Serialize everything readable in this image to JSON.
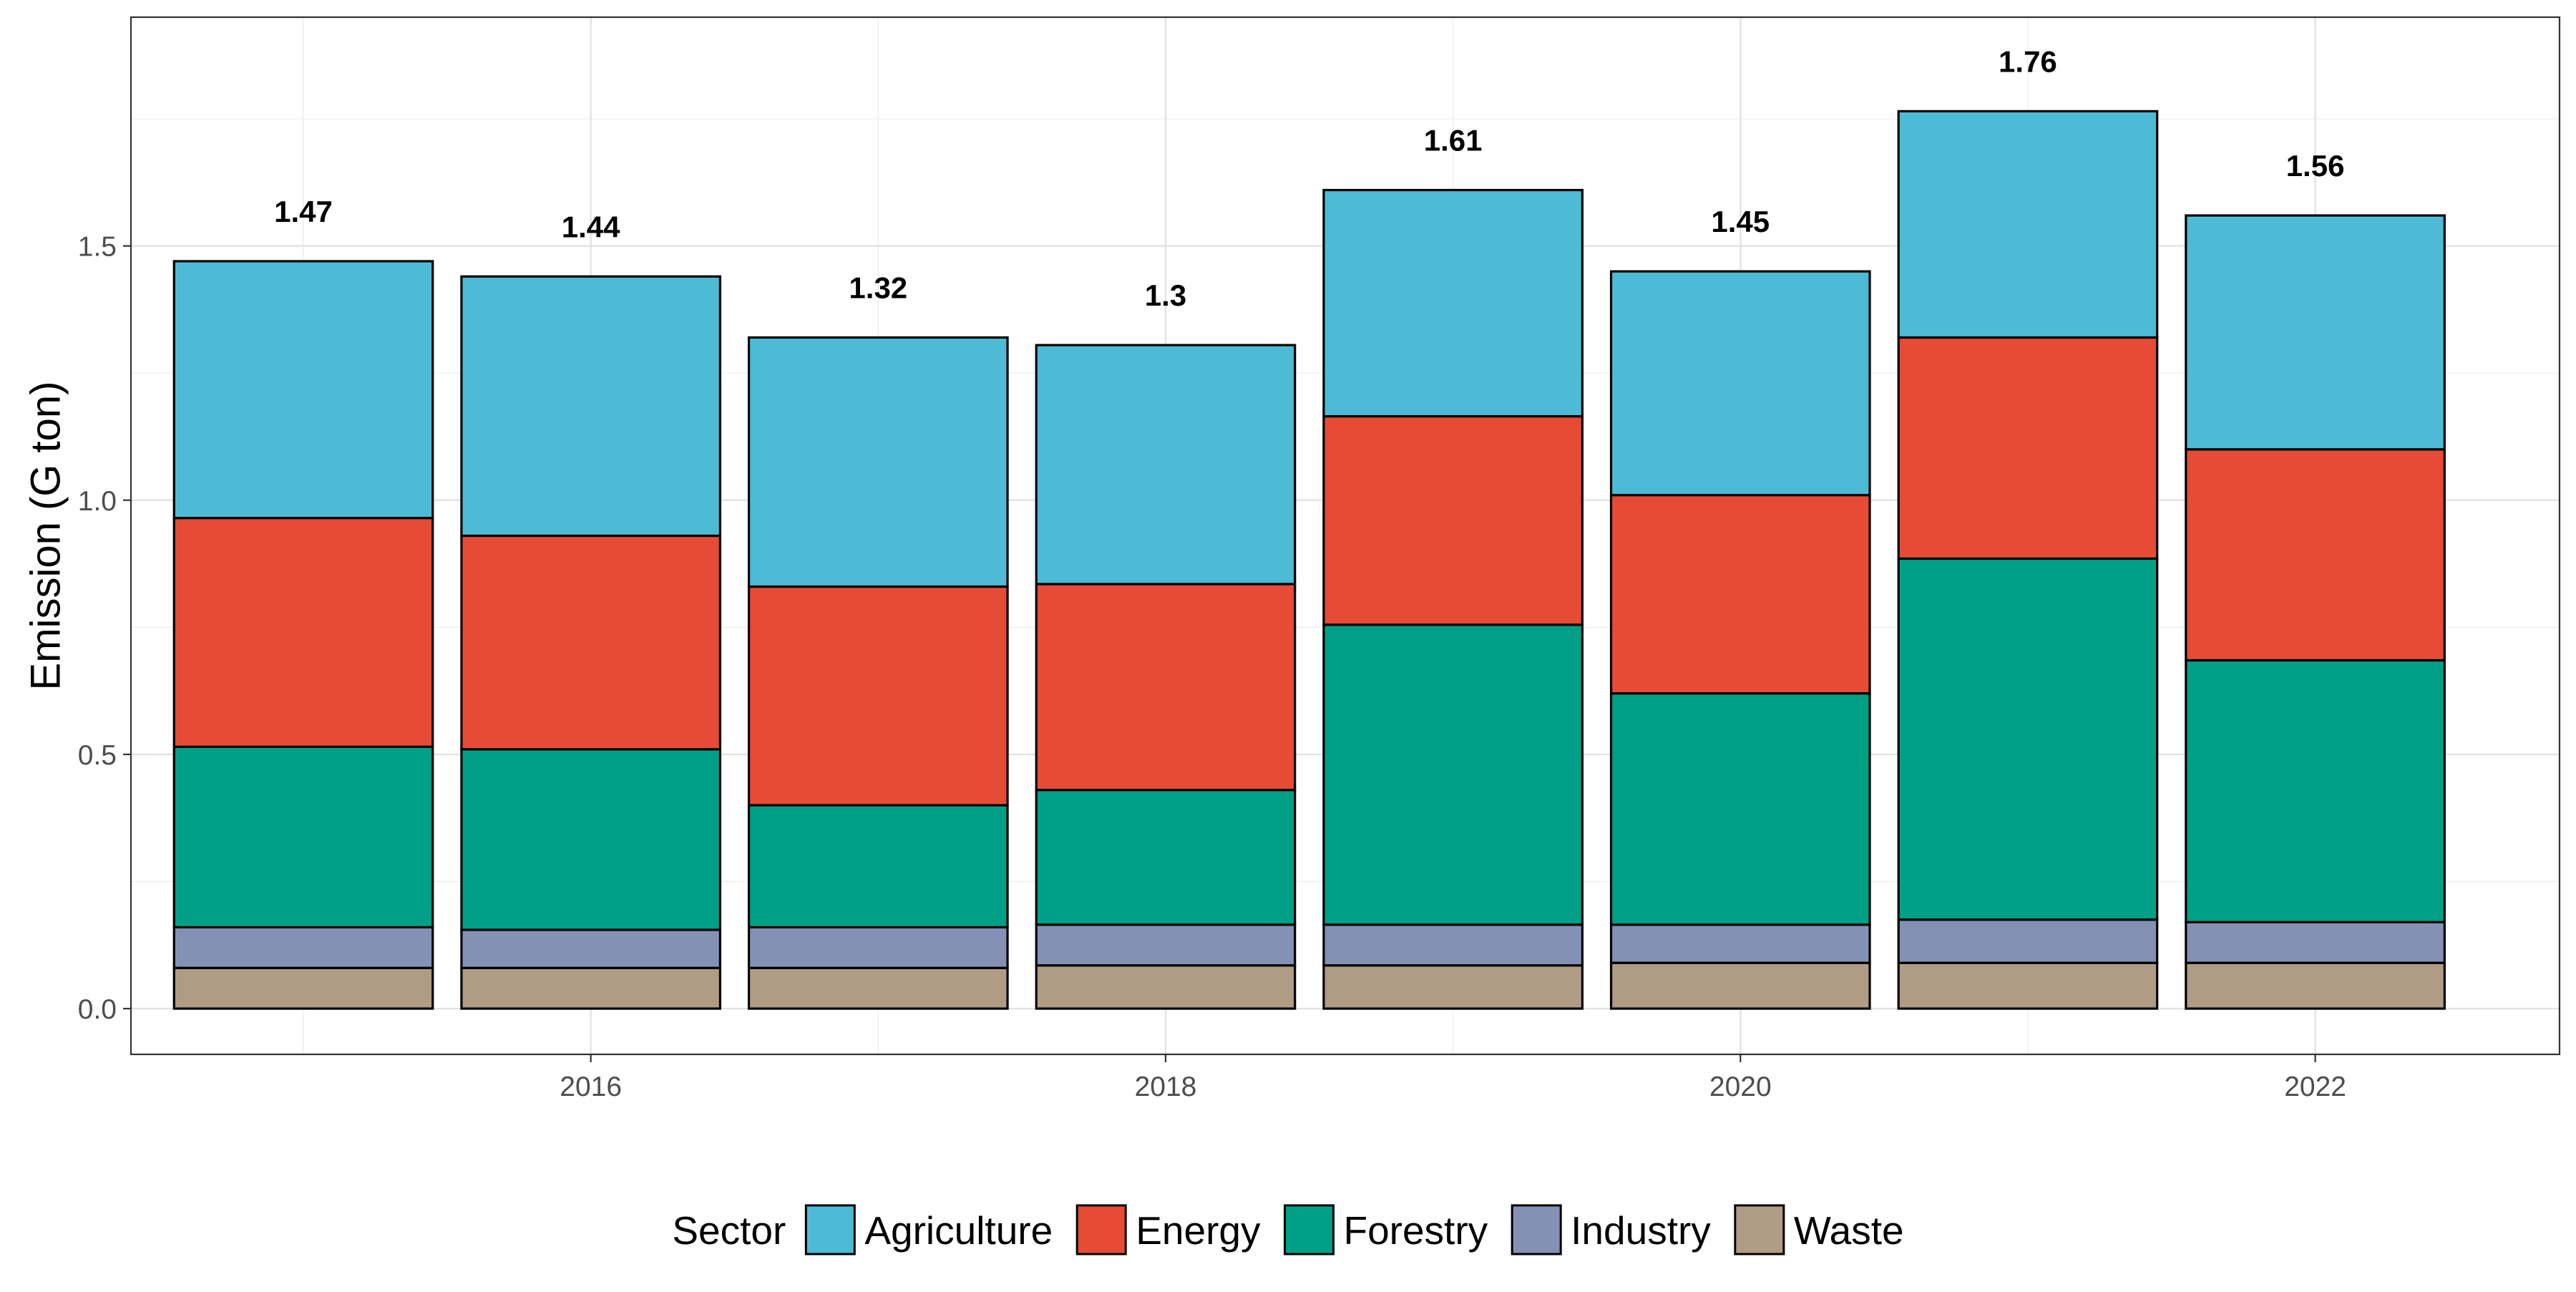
{
  "chart_data": {
    "type": "bar",
    "stacked": true,
    "title": "",
    "xlabel": "",
    "ylabel": "Emission (G ton)",
    "x": [
      2015,
      2016,
      2017,
      2018,
      2019,
      2020,
      2021,
      2022
    ],
    "x_ticks": [
      "2016",
      "2018",
      "2020",
      "2022"
    ],
    "xlim": [
      2014.4,
      2022.85
    ],
    "y_ticks": [
      "0.0",
      "0.5",
      "1.0",
      "1.5"
    ],
    "ylim": [
      -0.09,
      1.95
    ],
    "grid": true,
    "legend_title": "Sector",
    "legend_position": "bottom",
    "series": [
      {
        "name": "Waste",
        "color": "#B09C85",
        "values": [
          0.08,
          0.08,
          0.08,
          0.085,
          0.085,
          0.09,
          0.09,
          0.09
        ]
      },
      {
        "name": "Industry",
        "color": "#8491B4",
        "values": [
          0.08,
          0.075,
          0.08,
          0.08,
          0.08,
          0.075,
          0.085,
          0.08
        ]
      },
      {
        "name": "Forestry",
        "color": "#00A087",
        "values": [
          0.355,
          0.355,
          0.24,
          0.265,
          0.59,
          0.455,
          0.71,
          0.515
        ]
      },
      {
        "name": "Energy",
        "color": "#E64B35",
        "values": [
          0.45,
          0.42,
          0.43,
          0.405,
          0.41,
          0.39,
          0.435,
          0.415
        ]
      },
      {
        "name": "Agriculture",
        "color": "#4DBBD5",
        "values": [
          0.505,
          0.51,
          0.49,
          0.47,
          0.445,
          0.44,
          0.445,
          0.46
        ]
      }
    ],
    "legend_order": [
      "Agriculture",
      "Energy",
      "Forestry",
      "Industry",
      "Waste"
    ],
    "total_labels": [
      "1.47",
      "1.44",
      "1.32",
      "1.3",
      "1.61",
      "1.45",
      "1.76",
      "1.56"
    ]
  }
}
